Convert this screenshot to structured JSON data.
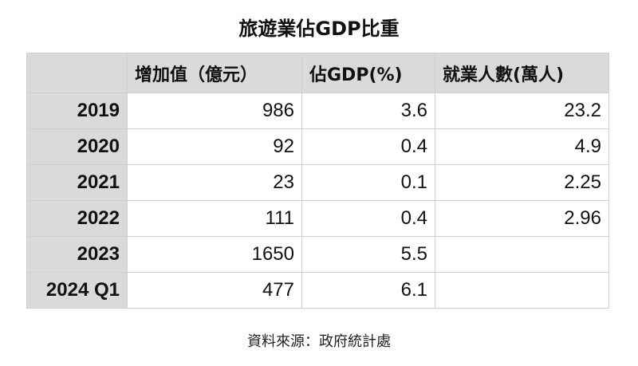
{
  "chart_data": {
    "type": "table",
    "title": "旅遊業佔GDP比重",
    "columns": [
      "",
      "增加值（億元）",
      "佔GDP(%)",
      "就業人數(萬人)"
    ],
    "rows": [
      {
        "label": "2019",
        "values": [
          "986",
          "3.6",
          "23.2"
        ]
      },
      {
        "label": "2020",
        "values": [
          "92",
          "0.4",
          "4.9"
        ]
      },
      {
        "label": "2021",
        "values": [
          "23",
          "0.1",
          "2.25"
        ]
      },
      {
        "label": "2022",
        "values": [
          "111",
          "0.4",
          "2.96"
        ]
      },
      {
        "label": "2023",
        "values": [
          "1650",
          "5.5",
          ""
        ]
      },
      {
        "label": "2024 Q1",
        "values": [
          "477",
          "6.1",
          ""
        ]
      }
    ],
    "source": "資料來源：政府統計處"
  }
}
